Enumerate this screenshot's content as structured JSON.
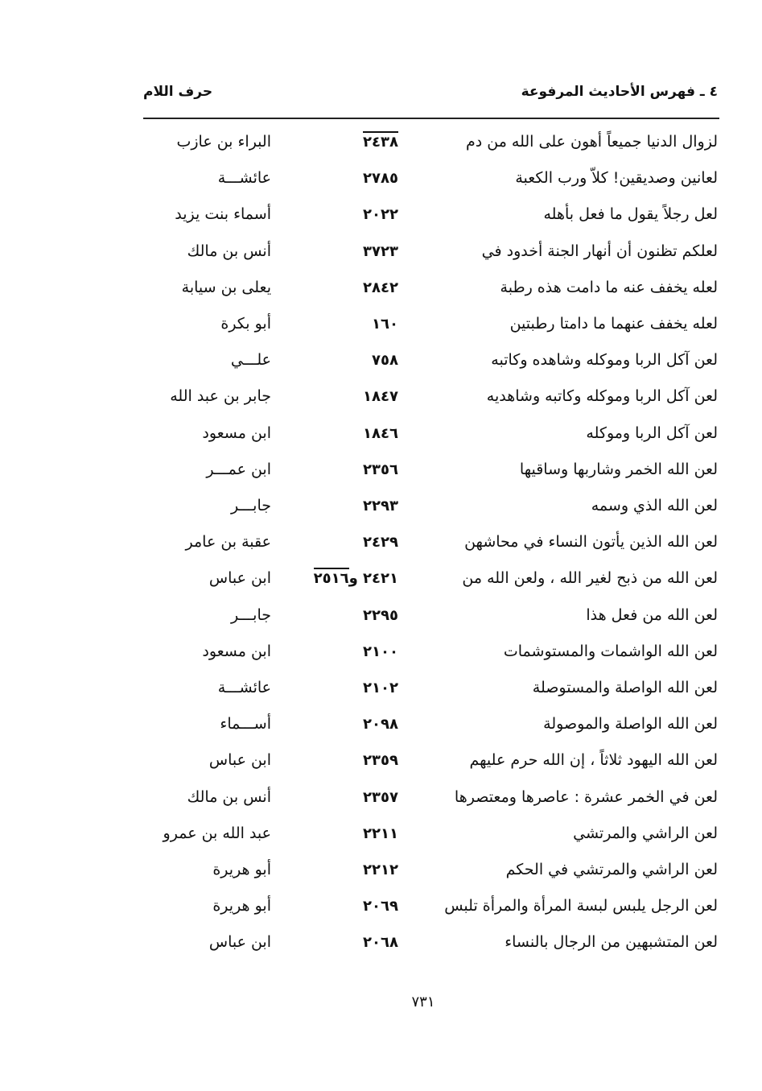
{
  "header": {
    "section_title": "٤ ـ فهرس الأحاديث المرفوعة",
    "letter_title": "حرف اللام"
  },
  "entries": [
    {
      "hadith": "لزوال الدنيا جميعاً أهون على الله من دم",
      "number": "٢٤٣٨",
      "number_overline": true,
      "narrator": "البراء بن عازب"
    },
    {
      "hadith": "لعانين وصديقين! كلاّ ورب الكعبة",
      "number": "٢٧٨٥",
      "narrator": "عائشـــة"
    },
    {
      "hadith": "لعل رجلاً يقول ما فعل بأهله",
      "number": "٢٠٢٢",
      "narrator": "أسماء بنت يزيد"
    },
    {
      "hadith": "لعلكم تظنون أن أنهار الجنة أخدود في",
      "number": "٣٧٢٣",
      "narrator": "أنس بن مالك"
    },
    {
      "hadith": "لعله يخفف عنه ما دامت هذه رطبة",
      "number": "٢٨٤٢",
      "narrator": "يعلى بن سيابة"
    },
    {
      "hadith": "لعله يخفف عنهما ما دامتا رطبتين",
      "number": "١٦٠",
      "narrator": "أبو بكرة"
    },
    {
      "hadith": "لعن آكل الربا وموكله وشاهده وكاتبه",
      "number": "٧٥٨",
      "narrator": "علـــي"
    },
    {
      "hadith": "لعن آكل الربا وموكله وكاتبه وشاهديه",
      "number": "١٨٤٧",
      "narrator": "جابر بن عبد الله"
    },
    {
      "hadith": "لعن آكل الربا وموكله",
      "number": "١٨٤٦",
      "narrator": "ابن مسعود"
    },
    {
      "hadith": "لعن الله الخمر وشاربها وساقيها",
      "number": "٢٣٥٦",
      "narrator": "ابن عمـــر"
    },
    {
      "hadith": "لعن الله الذي وسمه",
      "number": "٢٢٩٣",
      "narrator": "جابـــر"
    },
    {
      "hadith": "لعن الله الذين يأتون النساء في محاشهن",
      "number": "٢٤٢٩",
      "narrator": "عقبة بن عامر"
    },
    {
      "hadith": "لعن الله من ذبح لغير الله ، ولعن الله من",
      "number": "٢٤٢١ و",
      "number_extra": "٢٥١٦",
      "narrator": "ابن عباس"
    },
    {
      "hadith": "لعن الله من فعل هذا",
      "number": "٢٢٩٥",
      "narrator": "جابـــر"
    },
    {
      "hadith": "لعن الله الواشمات والمستوشمات",
      "number": "٢١٠٠",
      "narrator": "ابن مسعود"
    },
    {
      "hadith": "لعن الله الواصلة والمستوصلة",
      "number": "٢١٠٢",
      "narrator": "عائشـــة"
    },
    {
      "hadith": "لعن الله الواصلة والموصولة",
      "number": "٢٠٩٨",
      "narrator": "أســـماء"
    },
    {
      "hadith": "لعن الله اليهود ثلاثاً ، إن الله حرم عليهم",
      "number": "٢٣٥٩",
      "narrator": "ابن عباس"
    },
    {
      "hadith": "لعن في الخمر عشرة : عاصرها ومعتصرها",
      "number": "٢٣٥٧",
      "narrator": "أنس بن مالك"
    },
    {
      "hadith": "لعن الراشي والمرتشي",
      "number": "٢٢١١",
      "narrator": "عبد الله بن عمرو"
    },
    {
      "hadith": "لعن الراشي والمرتشي في الحكم",
      "number": "٢٢١٢",
      "narrator": "أبو هريرة"
    },
    {
      "hadith": "لعن الرجل يلبس لبسة المرأة والمرأة تلبس",
      "number": "٢٠٦٩",
      "narrator": "أبو هريرة"
    },
    {
      "hadith": "لعن المتشبهين من الرجال بالنساء",
      "number": "٢٠٦٨",
      "narrator": "ابن عباس"
    }
  ],
  "page_number": "٧٣١"
}
